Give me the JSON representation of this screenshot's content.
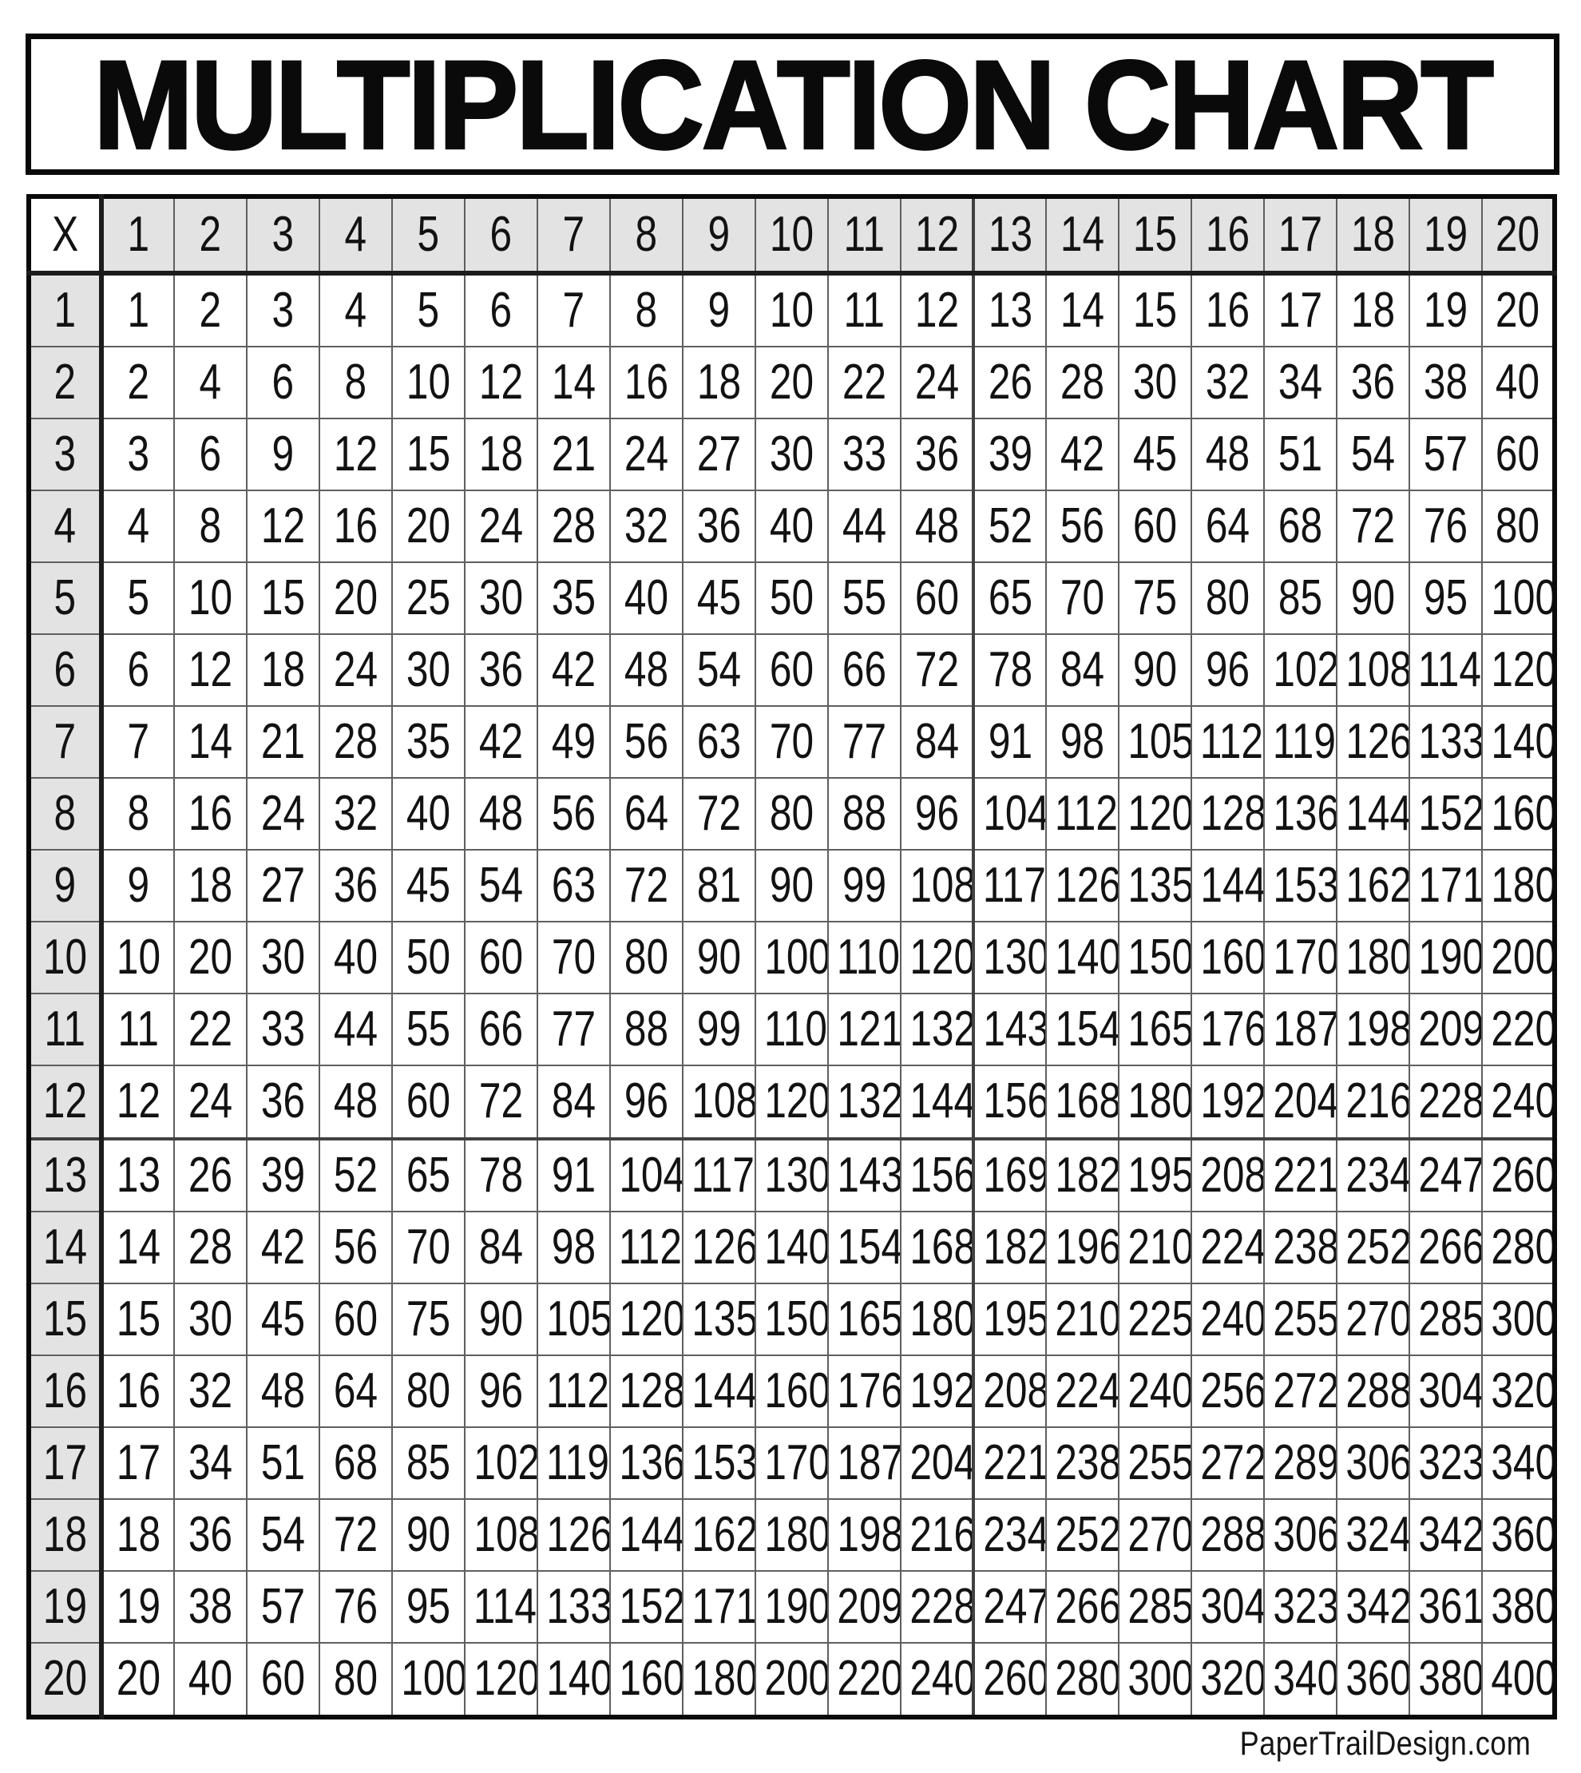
{
  "page": {
    "title": "MULTIPLICATION CHART"
  },
  "table": {
    "corner_label": "X",
    "column_headers": [
      1,
      2,
      3,
      4,
      5,
      6,
      7,
      8,
      9,
      10,
      11,
      12,
      13,
      14,
      15,
      16,
      17,
      18,
      19,
      20
    ],
    "rows": [
      {
        "header": 1,
        "values": [
          1,
          2,
          3,
          4,
          5,
          6,
          7,
          8,
          9,
          10,
          11,
          12,
          13,
          14,
          15,
          16,
          17,
          18,
          19,
          20
        ]
      },
      {
        "header": 2,
        "values": [
          2,
          4,
          6,
          8,
          10,
          12,
          14,
          16,
          18,
          20,
          22,
          24,
          26,
          28,
          30,
          32,
          34,
          36,
          38,
          40
        ]
      },
      {
        "header": 3,
        "values": [
          3,
          6,
          9,
          12,
          15,
          18,
          21,
          24,
          27,
          30,
          33,
          36,
          39,
          42,
          45,
          48,
          51,
          54,
          57,
          60
        ]
      },
      {
        "header": 4,
        "values": [
          4,
          8,
          12,
          16,
          20,
          24,
          28,
          32,
          36,
          40,
          44,
          48,
          52,
          56,
          60,
          64,
          68,
          72,
          76,
          80
        ]
      },
      {
        "header": 5,
        "values": [
          5,
          10,
          15,
          20,
          25,
          30,
          35,
          40,
          45,
          50,
          55,
          60,
          65,
          70,
          75,
          80,
          85,
          90,
          95,
          100
        ]
      },
      {
        "header": 6,
        "values": [
          6,
          12,
          18,
          24,
          30,
          36,
          42,
          48,
          54,
          60,
          66,
          72,
          78,
          84,
          90,
          96,
          102,
          108,
          114,
          120
        ]
      },
      {
        "header": 7,
        "values": [
          7,
          14,
          21,
          28,
          35,
          42,
          49,
          56,
          63,
          70,
          77,
          84,
          91,
          98,
          105,
          112,
          119,
          126,
          133,
          140
        ]
      },
      {
        "header": 8,
        "values": [
          8,
          16,
          24,
          32,
          40,
          48,
          56,
          64,
          72,
          80,
          88,
          96,
          104,
          112,
          120,
          128,
          136,
          144,
          152,
          160
        ]
      },
      {
        "header": 9,
        "values": [
          9,
          18,
          27,
          36,
          45,
          54,
          63,
          72,
          81,
          90,
          99,
          108,
          117,
          126,
          135,
          144,
          153,
          162,
          171,
          180
        ]
      },
      {
        "header": 10,
        "values": [
          10,
          20,
          30,
          40,
          50,
          60,
          70,
          80,
          90,
          100,
          110,
          120,
          130,
          140,
          150,
          160,
          170,
          180,
          190,
          200
        ]
      },
      {
        "header": 11,
        "values": [
          11,
          22,
          33,
          44,
          55,
          66,
          77,
          88,
          99,
          110,
          121,
          132,
          143,
          154,
          165,
          176,
          187,
          198,
          209,
          220
        ]
      },
      {
        "header": 12,
        "values": [
          12,
          24,
          36,
          48,
          60,
          72,
          84,
          96,
          108,
          120,
          132,
          144,
          156,
          168,
          180,
          192,
          204,
          216,
          228,
          240
        ]
      },
      {
        "header": 13,
        "values": [
          13,
          26,
          39,
          52,
          65,
          78,
          91,
          104,
          117,
          130,
          143,
          156,
          169,
          182,
          195,
          208,
          221,
          234,
          247,
          260
        ]
      },
      {
        "header": 14,
        "values": [
          14,
          28,
          42,
          56,
          70,
          84,
          98,
          112,
          126,
          140,
          154,
          168,
          182,
          196,
          210,
          224,
          238,
          252,
          266,
          280
        ]
      },
      {
        "header": 15,
        "values": [
          15,
          30,
          45,
          60,
          75,
          90,
          105,
          120,
          135,
          150,
          165,
          180,
          195,
          210,
          225,
          240,
          255,
          270,
          285,
          300
        ]
      },
      {
        "header": 16,
        "values": [
          16,
          32,
          48,
          64,
          80,
          96,
          112,
          128,
          144,
          160,
          176,
          192,
          208,
          224,
          240,
          256,
          272,
          288,
          304,
          320
        ]
      },
      {
        "header": 17,
        "values": [
          17,
          34,
          51,
          68,
          85,
          102,
          119,
          136,
          153,
          170,
          187,
          204,
          221,
          238,
          255,
          272,
          289,
          306,
          323,
          340
        ]
      },
      {
        "header": 18,
        "values": [
          18,
          36,
          54,
          72,
          90,
          108,
          126,
          144,
          162,
          180,
          198,
          216,
          234,
          252,
          270,
          288,
          306,
          324,
          342,
          360
        ]
      },
      {
        "header": 19,
        "values": [
          19,
          38,
          57,
          76,
          95,
          114,
          133,
          152,
          171,
          190,
          209,
          228,
          247,
          266,
          285,
          304,
          323,
          342,
          361,
          380
        ]
      },
      {
        "header": 20,
        "values": [
          20,
          40,
          60,
          80,
          100,
          120,
          140,
          160,
          180,
          200,
          220,
          240,
          260,
          280,
          300,
          320,
          340,
          360,
          380,
          400
        ]
      }
    ],
    "quad_divider_after": 12
  },
  "footer": {
    "credit": "PaperTrailDesign.com"
  },
  "colors": {
    "header_fill": "#e3e3e3",
    "outer_border": "#0a0a0a",
    "thin_grid": "#5f5f5f",
    "header_separator": "#1c1c1c",
    "quad_divider": "#414141",
    "text": "#121212"
  }
}
